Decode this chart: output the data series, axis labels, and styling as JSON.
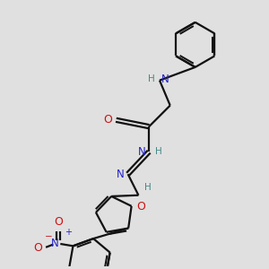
{
  "background_color": "#e0e0e0",
  "bond_color": "#111111",
  "N_color": "#2222cc",
  "O_color": "#cc1111",
  "H_color": "#448888",
  "figsize": [
    3.0,
    3.0
  ],
  "dpi": 100,
  "xlim": [
    0,
    10
  ],
  "ylim": [
    0,
    10
  ],
  "lw": 1.6
}
